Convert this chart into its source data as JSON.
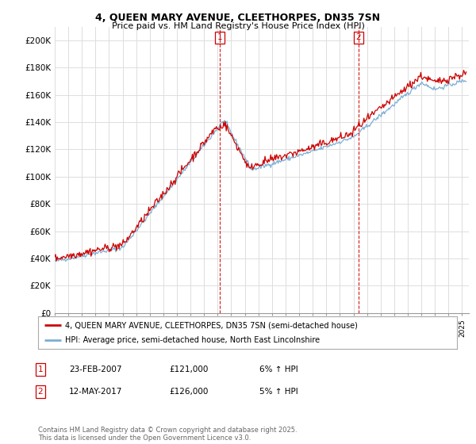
{
  "title1": "4, QUEEN MARY AVENUE, CLEETHORPES, DN35 7SN",
  "title2": "Price paid vs. HM Land Registry's House Price Index (HPI)",
  "ylabel_ticks": [
    "£0",
    "£20K",
    "£40K",
    "£60K",
    "£80K",
    "£100K",
    "£120K",
    "£140K",
    "£160K",
    "£180K",
    "£200K"
  ],
  "ytick_values": [
    0,
    20000,
    40000,
    60000,
    80000,
    100000,
    120000,
    140000,
    160000,
    180000,
    200000
  ],
  "ylim": [
    0,
    210000
  ],
  "xlim_start": 1995.0,
  "xlim_end": 2025.5,
  "event1_x": 2007.14,
  "event1_label": "1",
  "event2_x": 2017.36,
  "event2_label": "2",
  "legend_line1": "4, QUEEN MARY AVENUE, CLEETHORPES, DN35 7SN (semi-detached house)",
  "legend_line2": "HPI: Average price, semi-detached house, North East Lincolnshire",
  "table_row1": [
    "1",
    "23-FEB-2007",
    "£121,000",
    "6% ↑ HPI"
  ],
  "table_row2": [
    "2",
    "12-MAY-2017",
    "£126,000",
    "5% ↑ HPI"
  ],
  "footer": "Contains HM Land Registry data © Crown copyright and database right 2025.\nThis data is licensed under the Open Government Licence v3.0.",
  "line_color_red": "#cc0000",
  "line_color_blue": "#7bafd4",
  "bg_color": "#ffffff",
  "grid_color": "#dddddd",
  "event_line_color": "#cc0000"
}
